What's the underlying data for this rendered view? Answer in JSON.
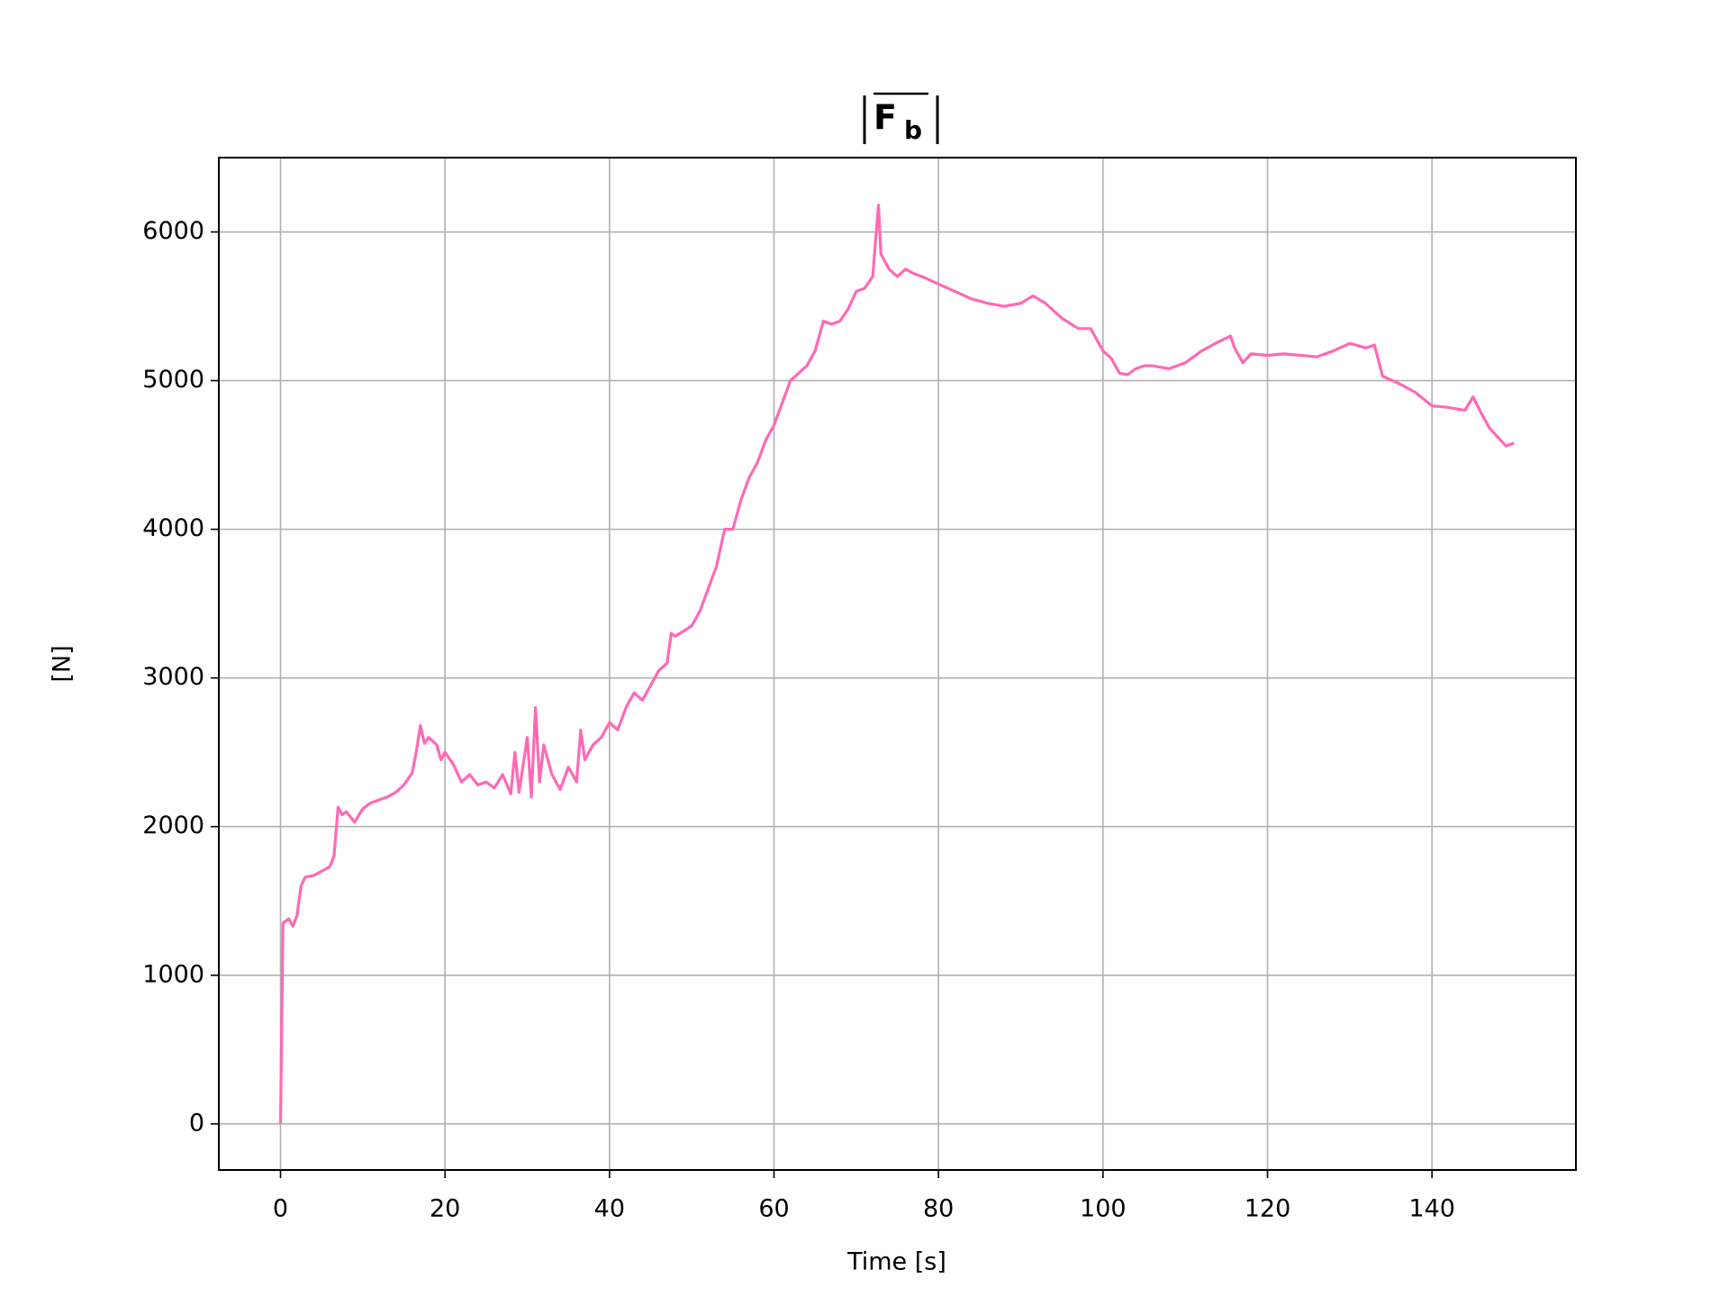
{
  "chart_data": {
    "type": "line",
    "title": {
      "symbol": "F",
      "subscript": "b"
    },
    "xlabel": "Time [s]",
    "ylabel": "[N]",
    "xlim": [
      -7.5,
      157.5
    ],
    "ylim": [
      -310,
      6500
    ],
    "xticks": [
      0,
      20,
      40,
      60,
      80,
      100,
      120,
      140
    ],
    "yticks": [
      0,
      1000,
      2000,
      3000,
      4000,
      5000,
      6000
    ],
    "grid": true,
    "series": [
      {
        "color": "#ff69b4",
        "x": [
          0,
          0.3,
          1,
          1.5,
          2,
          2.5,
          3,
          4,
          5,
          6,
          6.5,
          7,
          7.5,
          8,
          9,
          10,
          11,
          12,
          13,
          14,
          15,
          16,
          16.5,
          17,
          17.5,
          18,
          19,
          19.5,
          20,
          21,
          22,
          23,
          24,
          25,
          26,
          27,
          28,
          28.5,
          29,
          30,
          30.5,
          31,
          31.5,
          32,
          33,
          34,
          35,
          36,
          36.5,
          37,
          38,
          39,
          40,
          41,
          42,
          43,
          44,
          45,
          46,
          47,
          47.5,
          48,
          50,
          51,
          52,
          53,
          54,
          55,
          56,
          57,
          58,
          59,
          60,
          61,
          62,
          63,
          64,
          65,
          66,
          67,
          68,
          69,
          70,
          71,
          72,
          72.7,
          73,
          74,
          75,
          76,
          77,
          78,
          80,
          82,
          84,
          86,
          88,
          90,
          91.5,
          93,
          95,
          97,
          98.5,
          100,
          101,
          102,
          103,
          104,
          105,
          106,
          108,
          110,
          112,
          114,
          115.5,
          116,
          117,
          118,
          120,
          122,
          124,
          126,
          128,
          130,
          132,
          133,
          134,
          136,
          138,
          140,
          142,
          144,
          145,
          146,
          147,
          148,
          149,
          150
        ],
        "values": [
          0,
          1350,
          1380,
          1330,
          1400,
          1600,
          1660,
          1670,
          1700,
          1730,
          1800,
          2130,
          2080,
          2100,
          2030,
          2120,
          2160,
          2180,
          2200,
          2230,
          2280,
          2360,
          2500,
          2680,
          2560,
          2600,
          2550,
          2450,
          2500,
          2420,
          2300,
          2350,
          2280,
          2300,
          2260,
          2350,
          2220,
          2500,
          2230,
          2600,
          2200,
          2800,
          2300,
          2550,
          2350,
          2250,
          2400,
          2300,
          2650,
          2450,
          2550,
          2600,
          2700,
          2650,
          2800,
          2900,
          2850,
          2950,
          3050,
          3100,
          3300,
          3280,
          3350,
          3450,
          3600,
          3750,
          4000,
          4000,
          4200,
          4350,
          4450,
          4600,
          4700,
          4850,
          5000,
          5050,
          5100,
          5200,
          5400,
          5380,
          5400,
          5480,
          5600,
          5620,
          5700,
          6180,
          5850,
          5750,
          5700,
          5750,
          5720,
          5700,
          5650,
          5600,
          5550,
          5520,
          5500,
          5520,
          5570,
          5520,
          5420,
          5350,
          5350,
          5200,
          5150,
          5050,
          5040,
          5080,
          5100,
          5100,
          5080,
          5120,
          5200,
          5260,
          5300,
          5220,
          5120,
          5180,
          5170,
          5180,
          5170,
          5160,
          5200,
          5250,
          5220,
          5240,
          5030,
          4980,
          4920,
          4830,
          4820,
          4800,
          4890,
          4780,
          4680,
          4620,
          4560,
          4580
        ]
      }
    ]
  }
}
